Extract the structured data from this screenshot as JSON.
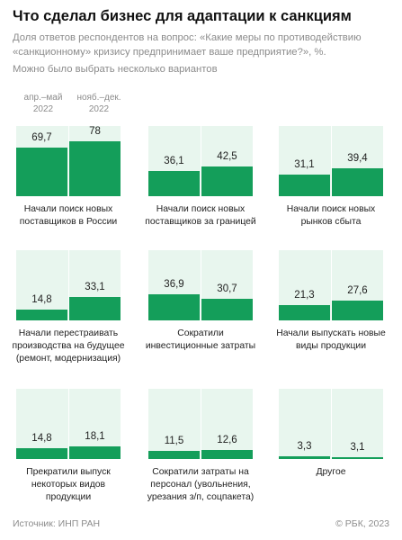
{
  "header": {
    "title": "Что сделал бизнес для адаптации к санкциям",
    "subtitle": "Доля ответов респондентов на вопрос: «Какие меры по противодействию «санкционному» кризису предпринимает ваше предприятие?», %.",
    "note": "Можно было выбрать несколько вариантов"
  },
  "periods": [
    "апр.–май 2022",
    "нояб.–дек. 2022"
  ],
  "footer": {
    "source": "Источник: ИНП РАН",
    "copyright": "© РБК, 2023"
  },
  "colors": {
    "bar": "#149e5a",
    "panel_background": "#e8f6ee",
    "muted_text": "#8c8c8c"
  },
  "chart_data": {
    "type": "bar",
    "ylim": [
      0,
      100
    ],
    "series": [
      {
        "name": "апр.–май 2022"
      },
      {
        "name": "нояб.–дек. 2022"
      }
    ],
    "panels": [
      {
        "label": "Начали поиск новых поставщиков в России",
        "values": [
          69.7,
          78
        ],
        "labels": [
          "69,7",
          "78"
        ]
      },
      {
        "label": "Начали поиск новых поставщиков за границей",
        "values": [
          36.1,
          42.5
        ],
        "labels": [
          "36,1",
          "42,5"
        ]
      },
      {
        "label": "Начали поиск новых рынков сбыта",
        "values": [
          31.1,
          39.4
        ],
        "labels": [
          "31,1",
          "39,4"
        ]
      },
      {
        "label": "Начали перестраивать производства на будущее (ремонт, модернизация)",
        "values": [
          14.8,
          33.1
        ],
        "labels": [
          "14,8",
          "33,1"
        ]
      },
      {
        "label": "Сократили инвестиционные затраты",
        "values": [
          36.9,
          30.7
        ],
        "labels": [
          "36,9",
          "30,7"
        ]
      },
      {
        "label": "Начали выпускать новые виды продукции",
        "values": [
          21.3,
          27.6
        ],
        "labels": [
          "21,3",
          "27,6"
        ]
      },
      {
        "label": "Прекратили выпуск некоторых видов продукции",
        "values": [
          14.8,
          18.1
        ],
        "labels": [
          "14,8",
          "18,1"
        ]
      },
      {
        "label": "Сократили затраты на персонал (увольнения, урезания з/п, соцпакета)",
        "values": [
          11.5,
          12.6
        ],
        "labels": [
          "11,5",
          "12,6"
        ]
      },
      {
        "label": "Другое",
        "values": [
          3.3,
          3.1
        ],
        "labels": [
          "3,3",
          "3,1"
        ]
      }
    ]
  }
}
